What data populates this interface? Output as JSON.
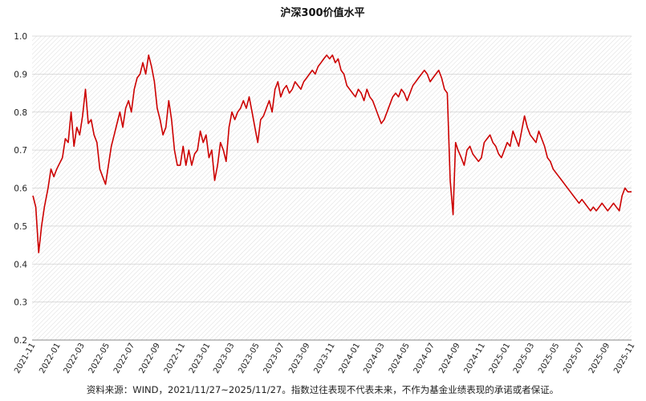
{
  "chart_data": {
    "type": "line",
    "title": "沪深300价值水平",
    "source_note": "资料来源：WIND，2021/11/27~2025/11/27。指数过往表现不代表未来，不作为基金业绩表现的承诺或者保证。",
    "ylim": [
      0.2,
      1.0
    ],
    "y_ticks": [
      "0.2",
      "0.3",
      "0.4",
      "0.5",
      "0.6",
      "0.7",
      "0.8",
      "0.9",
      "1.0"
    ],
    "x_ticks": [
      "2021-11",
      "2022-01",
      "2022-03",
      "2022-05",
      "2022-07",
      "2022-09",
      "2022-11",
      "2023-01",
      "2023-03",
      "2023-05",
      "2023-07",
      "2023-09",
      "2023-11",
      "2024-01",
      "2024-03",
      "2024-05",
      "2024-07",
      "2024-09",
      "2024-11",
      "2025-01",
      "2025-03",
      "2025-05",
      "2025-07",
      "2025-09",
      "2025-11"
    ],
    "grid": true,
    "line_color": "#cc0000",
    "series": [
      {
        "x": [
          "2021-11-29",
          "2021-12-06",
          "2021-12-13",
          "2021-12-20",
          "2021-12-27",
          "2022-01-05",
          "2022-01-12",
          "2022-01-19",
          "2022-01-26",
          "2022-02-09",
          "2022-02-16",
          "2022-02-23",
          "2022-03-02",
          "2022-03-09",
          "2022-03-16",
          "2022-03-23",
          "2022-03-30",
          "2022-04-06",
          "2022-04-13",
          "2022-04-20",
          "2022-04-27",
          "2022-05-04",
          "2022-05-11",
          "2022-05-18",
          "2022-05-25",
          "2022-06-01",
          "2022-06-08",
          "2022-06-15",
          "2022-06-22",
          "2022-06-29",
          "2022-07-06",
          "2022-07-13",
          "2022-07-20",
          "2022-07-27",
          "2022-08-03",
          "2022-08-10",
          "2022-08-17",
          "2022-08-24",
          "2022-08-31",
          "2022-09-07",
          "2022-09-14",
          "2022-09-21",
          "2022-09-28",
          "2022-10-05",
          "2022-10-12",
          "2022-10-19",
          "2022-10-26",
          "2022-11-02",
          "2022-11-09",
          "2022-11-16",
          "2022-11-23",
          "2022-11-30",
          "2022-12-07",
          "2022-12-14",
          "2022-12-21",
          "2022-12-28",
          "2023-01-04",
          "2023-01-11",
          "2023-01-18",
          "2023-01-25",
          "2023-02-01",
          "2023-02-08",
          "2023-02-15",
          "2023-02-22",
          "2023-03-01",
          "2023-03-08",
          "2023-03-15",
          "2023-03-22",
          "2023-03-29",
          "2023-04-05",
          "2023-04-12",
          "2023-04-19",
          "2023-04-26",
          "2023-05-03",
          "2023-05-10",
          "2023-05-17",
          "2023-05-24",
          "2023-05-31",
          "2023-06-07",
          "2023-06-14",
          "2023-06-21",
          "2023-06-28",
          "2023-07-05",
          "2023-07-12",
          "2023-07-19",
          "2023-07-26",
          "2023-08-02",
          "2023-08-09",
          "2023-08-16",
          "2023-08-23",
          "2023-08-30",
          "2023-09-06",
          "2023-09-13",
          "2023-09-20",
          "2023-09-27",
          "2023-10-04",
          "2023-10-11",
          "2023-10-18",
          "2023-10-25",
          "2023-11-01",
          "2023-11-08",
          "2023-11-15",
          "2023-11-22",
          "2023-11-29",
          "2023-12-06",
          "2023-12-13",
          "2023-12-20",
          "2023-12-27",
          "2024-01-03",
          "2024-01-10",
          "2024-01-17",
          "2024-01-24",
          "2024-01-31",
          "2024-02-07",
          "2024-02-14",
          "2024-02-21",
          "2024-02-28",
          "2024-03-06",
          "2024-03-13",
          "2024-03-20",
          "2024-03-27",
          "2024-04-03",
          "2024-04-10",
          "2024-04-17",
          "2024-04-24",
          "2024-05-01",
          "2024-05-08",
          "2024-05-15",
          "2024-05-22",
          "2024-05-29",
          "2024-06-05",
          "2024-06-12",
          "2024-06-19",
          "2024-06-26",
          "2024-07-03",
          "2024-07-10",
          "2024-07-17",
          "2024-07-24",
          "2024-07-31",
          "2024-08-07",
          "2024-08-14",
          "2024-08-21",
          "2024-08-28",
          "2024-09-04",
          "2024-09-11",
          "2024-09-18",
          "2024-09-24",
          "2024-09-30",
          "2024-10-08",
          "2024-10-15",
          "2024-10-22",
          "2024-10-29",
          "2024-11-05",
          "2024-11-12",
          "2024-11-19",
          "2024-11-26",
          "2024-12-03",
          "2024-12-10",
          "2024-12-17",
          "2024-12-24",
          "2024-12-31",
          "2025-01-07",
          "2025-01-14",
          "2025-01-21",
          "2025-01-28",
          "2025-02-04",
          "2025-02-11",
          "2025-02-18",
          "2025-02-25",
          "2025-03-04",
          "2025-03-11",
          "2025-03-18",
          "2025-03-25",
          "2025-04-01",
          "2025-04-08",
          "2025-04-15",
          "2025-04-22",
          "2025-04-29",
          "2025-05-06",
          "2025-05-13",
          "2025-05-20",
          "2025-05-27",
          "2025-06-03",
          "2025-06-10",
          "2025-06-17",
          "2025-06-24",
          "2025-07-01",
          "2025-07-08",
          "2025-07-15",
          "2025-07-22",
          "2025-07-29",
          "2025-08-05",
          "2025-08-12",
          "2025-08-19",
          "2025-08-26",
          "2025-09-02",
          "2025-09-09",
          "2025-09-16",
          "2025-09-23",
          "2025-09-30",
          "2025-10-07",
          "2025-10-14",
          "2025-10-21",
          "2025-10-28",
          "2025-11-04",
          "2025-11-11",
          "2025-11-18",
          "2025-11-27"
        ],
        "values": [
          0.58,
          0.55,
          0.43,
          0.5,
          0.55,
          0.6,
          0.65,
          0.63,
          0.65,
          0.68,
          0.73,
          0.72,
          0.8,
          0.71,
          0.76,
          0.74,
          0.79,
          0.86,
          0.77,
          0.78,
          0.74,
          0.72,
          0.65,
          0.63,
          0.61,
          0.66,
          0.71,
          0.74,
          0.77,
          0.8,
          0.76,
          0.81,
          0.83,
          0.8,
          0.86,
          0.89,
          0.9,
          0.93,
          0.9,
          0.95,
          0.92,
          0.88,
          0.81,
          0.78,
          0.74,
          0.76,
          0.83,
          0.78,
          0.7,
          0.66,
          0.66,
          0.71,
          0.66,
          0.7,
          0.66,
          0.69,
          0.7,
          0.75,
          0.72,
          0.74,
          0.68,
          0.7,
          0.62,
          0.66,
          0.72,
          0.7,
          0.67,
          0.76,
          0.8,
          0.78,
          0.8,
          0.81,
          0.83,
          0.81,
          0.84,
          0.8,
          0.76,
          0.72,
          0.78,
          0.79,
          0.81,
          0.83,
          0.8,
          0.86,
          0.88,
          0.84,
          0.86,
          0.87,
          0.85,
          0.86,
          0.88,
          0.87,
          0.86,
          0.88,
          0.89,
          0.9,
          0.91,
          0.9,
          0.92,
          0.93,
          0.94,
          0.95,
          0.94,
          0.95,
          0.93,
          0.94,
          0.91,
          0.9,
          0.87,
          0.86,
          0.85,
          0.84,
          0.86,
          0.85,
          0.83,
          0.86,
          0.84,
          0.83,
          0.81,
          0.79,
          0.77,
          0.78,
          0.8,
          0.82,
          0.84,
          0.85,
          0.84,
          0.86,
          0.85,
          0.83,
          0.85,
          0.87,
          0.88,
          0.89,
          0.9,
          0.91,
          0.9,
          0.88,
          0.89,
          0.9,
          0.91,
          0.89,
          0.86,
          0.85,
          0.62,
          0.53,
          0.72,
          0.7,
          0.68,
          0.66,
          0.7,
          0.71,
          0.69,
          0.68,
          0.67,
          0.68,
          0.72,
          0.73,
          0.74,
          0.72,
          0.71,
          0.69,
          0.68,
          0.7,
          0.72,
          0.71,
          0.75,
          0.73,
          0.71,
          0.75,
          0.79,
          0.76,
          0.74,
          0.73,
          0.72,
          0.75,
          0.73,
          0.71,
          0.68,
          0.67,
          0.65,
          0.64,
          0.63,
          0.62,
          0.61,
          0.6,
          0.59,
          0.58,
          0.57,
          0.56,
          0.57,
          0.56,
          0.55,
          0.54,
          0.55,
          0.54,
          0.55,
          0.56,
          0.55,
          0.54,
          0.55,
          0.56,
          0.55,
          0.54,
          0.58,
          0.6,
          0.59,
          0.59
        ]
      }
    ]
  }
}
